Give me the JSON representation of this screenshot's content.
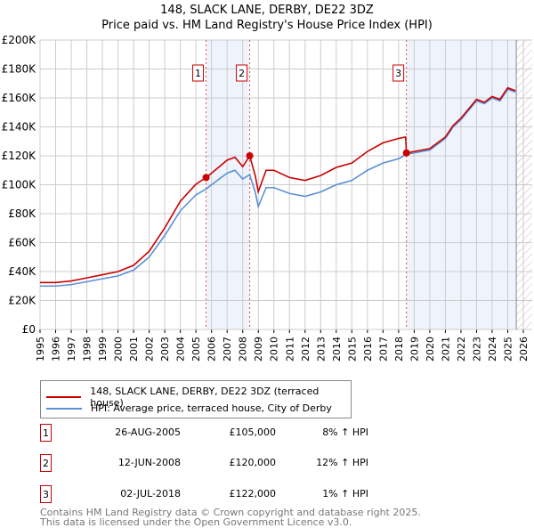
{
  "chart_data": {
    "type": "line",
    "title": "148, SLACK LANE, DERBY, DE22 3DZ",
    "subtitle": "Price paid vs. HM Land Registry's House Price Index (HPI)",
    "xlim": [
      1995,
      2026
    ],
    "ylim": [
      0,
      200000
    ],
    "x_ticks": [
      "1995",
      "1996",
      "1997",
      "1998",
      "1999",
      "2000",
      "2001",
      "2002",
      "2003",
      "2004",
      "2005",
      "2006",
      "2007",
      "2008",
      "2009",
      "2010",
      "2011",
      "2012",
      "2013",
      "2014",
      "2015",
      "2016",
      "2017",
      "2018",
      "2019",
      "2020",
      "2021",
      "2022",
      "2023",
      "2024",
      "2025",
      "2026"
    ],
    "y_ticks": [
      {
        "v": 0,
        "l": "£0"
      },
      {
        "v": 20000,
        "l": "£20K"
      },
      {
        "v": 40000,
        "l": "£40K"
      },
      {
        "v": 60000,
        "l": "£60K"
      },
      {
        "v": 80000,
        "l": "£80K"
      },
      {
        "v": 100000,
        "l": "£100K"
      },
      {
        "v": 120000,
        "l": "£120K"
      },
      {
        "v": 140000,
        "l": "£140K"
      },
      {
        "v": 160000,
        "l": "£160K"
      },
      {
        "v": 180000,
        "l": "£180K"
      },
      {
        "v": 200000,
        "l": "£200K"
      }
    ],
    "grid": true,
    "series": [
      {
        "name": "148, SLACK LANE, DERBY, DE22 3DZ (terraced house)",
        "color": "#cc0000",
        "x": [
          1995,
          1996,
          1997,
          1998,
          1999,
          2000,
          2001,
          2002,
          2003,
          2004,
          2005,
          2005.65,
          2006,
          2007,
          2007.5,
          2008,
          2008.45,
          2008.8,
          2009,
          2009.5,
          2010,
          2011,
          2012,
          2013,
          2014,
          2015,
          2016,
          2017,
          2018,
          2018.45,
          2018.5,
          2019,
          2020,
          2021,
          2021.5,
          2022,
          2023,
          2023.5,
          2024,
          2024.5,
          2025,
          2025.5
        ],
        "y": [
          32400,
          32400,
          33500,
          35600,
          37800,
          40000,
          44300,
          54000,
          70200,
          88600,
          100400,
          105000,
          108000,
          117000,
          119000,
          112500,
          120000,
          106400,
          95200,
          110000,
          110000,
          105000,
          103000,
          106400,
          112000,
          115000,
          123000,
          129000,
          132000,
          133000,
          122000,
          123000,
          125000,
          133000,
          141000,
          146000,
          159000,
          157000,
          161000,
          159000,
          167000,
          165000
        ]
      },
      {
        "name": "HPI: Average price, terraced house, City of Derby",
        "color": "#5b8fd6",
        "x": [
          1995,
          1996,
          1997,
          1998,
          1999,
          2000,
          2001,
          2002,
          2003,
          2004,
          2005,
          2005.65,
          2006,
          2007,
          2007.5,
          2008,
          2008.45,
          2008.8,
          2009,
          2009.5,
          2010,
          2011,
          2012,
          2013,
          2014,
          2015,
          2016,
          2017,
          2018,
          2018.5,
          2019,
          2020,
          2021,
          2021.5,
          2022,
          2023,
          2023.5,
          2024,
          2024.5,
          2025,
          2025.5
        ],
        "y": [
          30000,
          30000,
          31000,
          33000,
          35000,
          37000,
          41000,
          50000,
          65000,
          82000,
          93000,
          97000,
          100000,
          108000,
          110000,
          104000,
          107000,
          95000,
          85000,
          98000,
          98000,
          94000,
          92000,
          95000,
          100000,
          103000,
          110000,
          115000,
          118000,
          121000,
          122000,
          124000,
          132000,
          140000,
          145000,
          158000,
          156000,
          160000,
          158000,
          166000,
          164000
        ]
      }
    ],
    "sales": [
      {
        "n": "1",
        "x": 2005.65,
        "y": 105000,
        "date": "26-AUG-2005",
        "price": "£105,000",
        "hpi": "8% ↑ HPI"
      },
      {
        "n": "2",
        "x": 2008.45,
        "y": 120000,
        "date": "12-JUN-2008",
        "price": "£120,000",
        "hpi": "12% ↑ HPI"
      },
      {
        "n": "3",
        "x": 2018.5,
        "y": 122000,
        "date": "02-JUL-2018",
        "price": "£122,000",
        "hpi": "1% ↑ HPI"
      }
    ],
    "shaded_ranges": [
      [
        2005.65,
        2008.45
      ],
      [
        2018.5,
        2025.55
      ]
    ],
    "hatched_from": 2025.55,
    "legend_position": "below"
  },
  "footer": {
    "line1": "Contains HM Land Registry data © Crown copyright and database right 2025.",
    "line2": "This data is licensed under the Open Government Licence v3.0."
  }
}
